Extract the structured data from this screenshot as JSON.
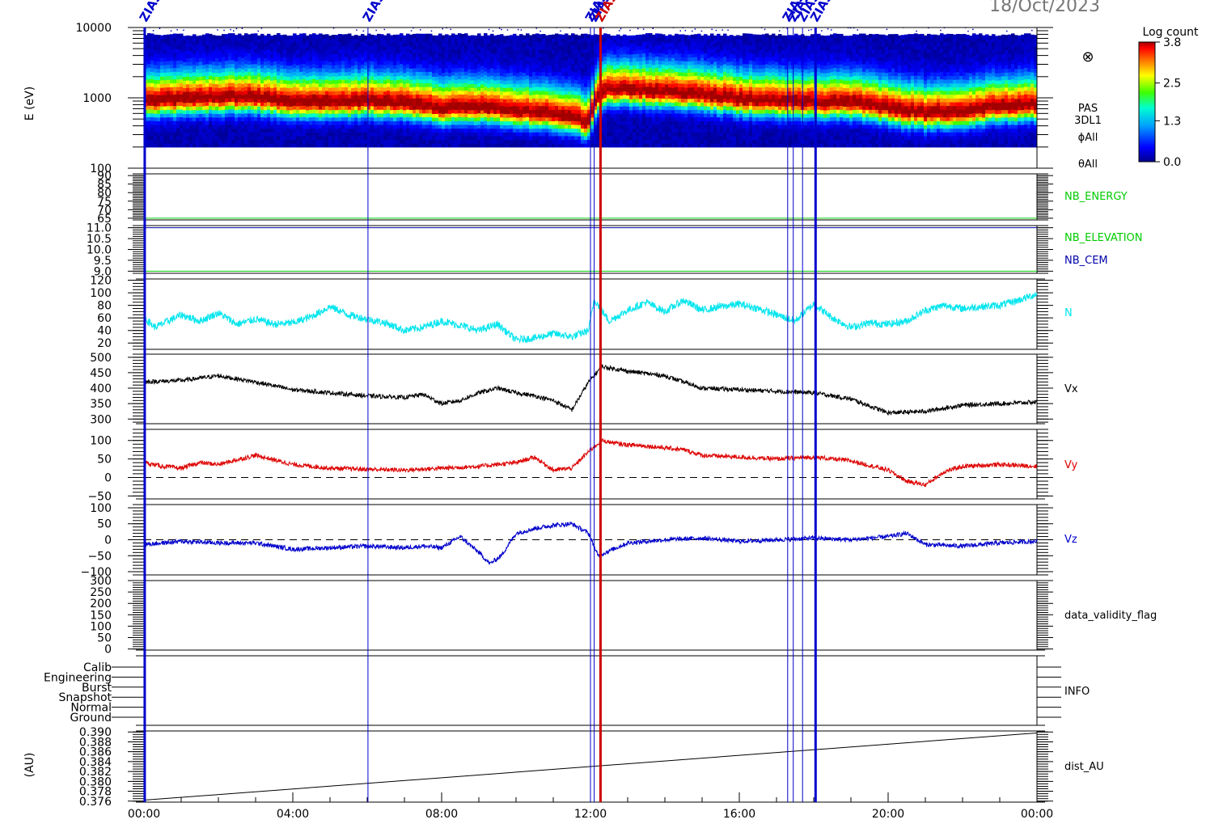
{
  "header": {
    "date": "18/Oct/2023"
  },
  "time_axis": {
    "start_hour": 0,
    "end_hour": 24,
    "tick_hours": [
      0,
      4,
      8,
      12,
      16,
      20,
      24
    ],
    "tick_labels": [
      "00:00",
      "04:00",
      "08:00",
      "12:00",
      "16:00",
      "20:00",
      "00:00"
    ]
  },
  "event_markers": [
    {
      "label": "ZIAS",
      "hour": 0.02,
      "color": "#0000cc",
      "thick": true
    },
    {
      "label": "ZIAS",
      "hour": 6.02,
      "color": "#0000cc",
      "thick": false
    },
    {
      "label": "ZIAS",
      "hour": 12.0,
      "color": "#0000cc",
      "thick": false
    },
    {
      "label": "ZIAS",
      "hour": 12.1,
      "color": "#0000cc",
      "thick": false
    },
    {
      "label": "ZIAS",
      "hour": 12.27,
      "color": "#cc0000",
      "thick": true
    },
    {
      "label": "ZIAS",
      "hour": 17.3,
      "color": "#0000cc",
      "thick": false
    },
    {
      "label": "ZIAS",
      "hour": 17.45,
      "color": "#0000cc",
      "thick": false
    },
    {
      "label": "ZIAS",
      "hour": 17.7,
      "color": "#0000cc",
      "thick": false
    },
    {
      "label": "ZIAS",
      "hour": 18.05,
      "color": "#0000cc",
      "thick": true
    }
  ],
  "colorbar": {
    "title": "Log count",
    "tick_labels": [
      "3.8",
      "2.5",
      "1.3",
      "0.0"
    ],
    "tick_values": [
      3.8,
      2.5,
      1.3,
      0.0
    ],
    "range": [
      0.0,
      3.8
    ]
  },
  "spectrogram_panel": {
    "ylabel": "E (eV)",
    "scale": "log",
    "ylim": [
      100,
      10000
    ],
    "tick_labels": [
      "10000",
      "1000",
      "100"
    ],
    "tick_values": [
      10000,
      1000,
      100
    ],
    "right_labels": [
      "PAS",
      "3DL1",
      "ϕAll",
      "θAll"
    ],
    "look_direction_symbol": "⊗",
    "peak_energy_ev": {
      "hours": [
        0,
        1,
        2,
        3,
        4,
        5,
        6,
        7,
        8,
        9,
        10,
        11,
        11.9,
        12.3,
        13,
        14,
        15,
        16,
        17,
        18,
        19,
        20,
        21,
        22,
        23,
        24
      ],
      "values": [
        900,
        950,
        1000,
        1000,
        850,
        850,
        900,
        850,
        700,
        750,
        650,
        600,
        450,
        1300,
        1300,
        1200,
        1100,
        950,
        900,
        850,
        850,
        700,
        600,
        650,
        750,
        800
      ]
    }
  },
  "nb_energy_panel": {
    "label": "NB_ENERGY",
    "ylim": [
      64,
      91
    ],
    "tick_labels": [
      "90",
      "85",
      "80",
      "75",
      "70",
      "65"
    ],
    "tick_values": [
      90,
      85,
      80,
      75,
      70,
      65
    ],
    "value": 65,
    "color": "#00cc00"
  },
  "nb_elevation_panel": {
    "labels": [
      "NB_ELEVATION",
      "NB_CEM"
    ],
    "label_colors": [
      "#00cc00",
      "#0000aa"
    ],
    "ylim": [
      8.9,
      11.1
    ],
    "tick_labels": [
      "11.0",
      "10.5",
      "10.0",
      "9.5",
      "9.0"
    ],
    "tick_values": [
      11.0,
      10.5,
      10.0,
      9.5,
      9.0
    ],
    "elevation_value": 9.0,
    "cem_value": 11.0
  },
  "info_panel": {
    "label": "INFO",
    "mode_labels": [
      "Calib",
      "Engineering",
      "Burst",
      "Snapshot",
      "Normal",
      "Ground"
    ]
  },
  "data_validity_panel": {
    "label": "data_validity_flag",
    "ylim": [
      -5,
      300
    ],
    "tick_labels": [
      "300",
      "250",
      "200",
      "150",
      "100",
      "50",
      "0"
    ],
    "tick_values": [
      300,
      250,
      200,
      150,
      100,
      50,
      0
    ]
  },
  "dist_panel": {
    "label": "dist_AU",
    "ylabel": "(AU)",
    "ylim": [
      0.3758,
      0.3902
    ],
    "tick_labels": [
      "0.390",
      "0.388",
      "0.386",
      "0.384",
      "0.382",
      "0.380",
      "0.378",
      "0.376"
    ],
    "tick_values": [
      0.39,
      0.388,
      0.386,
      0.384,
      0.382,
      0.38,
      0.378,
      0.376
    ]
  },
  "chart_data": [
    {
      "type": "line",
      "name": "N",
      "color": "#00e5ee",
      "ylim": [
        10,
        122
      ],
      "tick_labels": [
        "120",
        "100",
        "80",
        "60",
        "40",
        "20"
      ],
      "tick_values": [
        120,
        100,
        80,
        60,
        40,
        20
      ],
      "noise": 6,
      "x": [
        0,
        0.3,
        1,
        1.5,
        2,
        2.5,
        3,
        3.5,
        4,
        4.5,
        5,
        5.5,
        6,
        6.5,
        7,
        7.5,
        8,
        8.5,
        9,
        9.5,
        10,
        10.5,
        11,
        11.5,
        11.95,
        12.1,
        12.5,
        13,
        13.5,
        14,
        14.5,
        15,
        15.5,
        16,
        16.5,
        17,
        17.5,
        18,
        18.5,
        19,
        19.5,
        20,
        20.5,
        21,
        21.5,
        22,
        22.5,
        23,
        23.5,
        24
      ],
      "values": [
        60,
        45,
        65,
        55,
        68,
        50,
        58,
        50,
        52,
        62,
        78,
        65,
        58,
        52,
        40,
        45,
        55,
        48,
        40,
        50,
        25,
        28,
        35,
        30,
        40,
        90,
        55,
        72,
        85,
        70,
        88,
        72,
        78,
        82,
        75,
        65,
        55,
        82,
        60,
        45,
        52,
        50,
        55,
        72,
        80,
        75,
        78,
        80,
        88,
        98
      ]
    },
    {
      "type": "line",
      "name": "Vx",
      "color": "#000000",
      "ylim": [
        285,
        510
      ],
      "tick_labels": [
        "500",
        "450",
        "400",
        "350",
        "300"
      ],
      "tick_values": [
        500,
        450,
        400,
        350,
        300
      ],
      "noise": 7,
      "x": [
        0,
        1,
        2,
        3,
        4,
        5,
        6,
        7,
        7.5,
        8,
        8.5,
        9,
        9.5,
        10,
        10.5,
        11,
        11.5,
        11.95,
        12.3,
        13,
        14,
        15,
        16,
        17,
        18,
        19,
        20,
        21,
        22,
        23,
        24
      ],
      "values": [
        420,
        425,
        440,
        420,
        395,
        385,
        375,
        370,
        380,
        350,
        360,
        385,
        400,
        385,
        375,
        360,
        330,
        420,
        470,
        455,
        440,
        400,
        395,
        390,
        385,
        365,
        320,
        325,
        345,
        350,
        355
      ]
    },
    {
      "type": "line",
      "name": "Vy",
      "color": "#dd0000",
      "ylim": [
        -58,
        130
      ],
      "tick_labels": [
        "100",
        "50",
        "0",
        "−50"
      ],
      "tick_values": [
        100,
        50,
        0,
        -50
      ],
      "zero_line": true,
      "noise": 6,
      "x": [
        0,
        0.5,
        1,
        1.5,
        2,
        3,
        4,
        5,
        6,
        7,
        8,
        9,
        10,
        10.5,
        11,
        11.5,
        11.95,
        12.3,
        12.8,
        13.5,
        14.5,
        15,
        16,
        17,
        18,
        19,
        20,
        20.5,
        21,
        21.5,
        22,
        23,
        24
      ],
      "values": [
        40,
        30,
        25,
        40,
        35,
        60,
        35,
        25,
        22,
        20,
        25,
        30,
        40,
        55,
        20,
        25,
        70,
        100,
        90,
        85,
        75,
        60,
        55,
        50,
        55,
        45,
        20,
        -10,
        -20,
        15,
        30,
        35,
        30
      ]
    },
    {
      "type": "line",
      "name": "Vz",
      "color": "#0000cc",
      "ylim": [
        -110,
        110
      ],
      "tick_labels": [
        "100",
        "50",
        "0",
        "−50",
        "−100"
      ],
      "tick_values": [
        100,
        50,
        0,
        -50,
        -100
      ],
      "zero_line": true,
      "noise": 7,
      "x": [
        0,
        1,
        2,
        3,
        4,
        5,
        6,
        7,
        7.5,
        8,
        8.5,
        9,
        9.3,
        9.6,
        10,
        10.5,
        11,
        11.5,
        11.95,
        12.2,
        12.6,
        13,
        14,
        15,
        16,
        17,
        18,
        19,
        20,
        20.5,
        21,
        22,
        23,
        24
      ],
      "values": [
        -15,
        -5,
        -10,
        -10,
        -30,
        -25,
        -20,
        -25,
        -20,
        -25,
        10,
        -40,
        -75,
        -50,
        20,
        35,
        45,
        50,
        20,
        -50,
        -30,
        -10,
        0,
        5,
        -5,
        0,
        5,
        0,
        10,
        20,
        -15,
        -20,
        -10,
        -5
      ]
    },
    {
      "type": "line",
      "name": "dist_AU",
      "color": "#000000",
      "x": [
        0,
        24
      ],
      "values": [
        0.3762,
        0.3898
      ]
    }
  ]
}
